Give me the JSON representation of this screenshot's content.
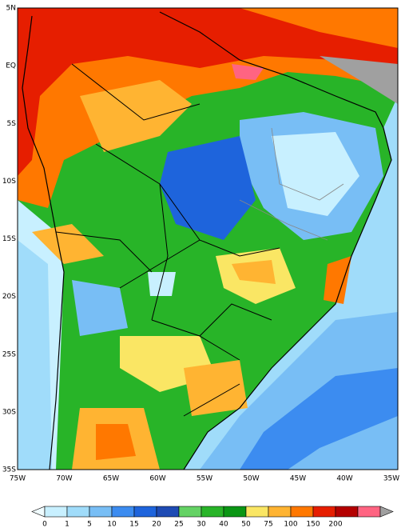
{
  "map": {
    "lat_labels": [
      "5N",
      "EQ",
      "5S",
      "10S",
      "15S",
      "20S",
      "25S",
      "30S",
      "35S"
    ],
    "lon_labels": [
      "75W",
      "70W",
      "65W",
      "60W",
      "55W",
      "50W",
      "45W",
      "40W",
      "35W"
    ],
    "colorbar": {
      "levels": [
        0,
        1,
        5,
        10,
        15,
        20,
        25,
        30,
        40,
        50,
        75,
        100,
        150,
        200
      ],
      "colors": [
        "#f0fcff",
        "#c8f0ff",
        "#a0dcfa",
        "#78bef5",
        "#3c8cf0",
        "#1e64dc",
        "#1e4bb4",
        "#64d264",
        "#28b428",
        "#0a9614",
        "#fae664",
        "#ffb432",
        "#ff7800",
        "#e61e00",
        "#b40000",
        "#ff6482"
      ],
      "over_color": "#a0a0a0"
    }
  }
}
